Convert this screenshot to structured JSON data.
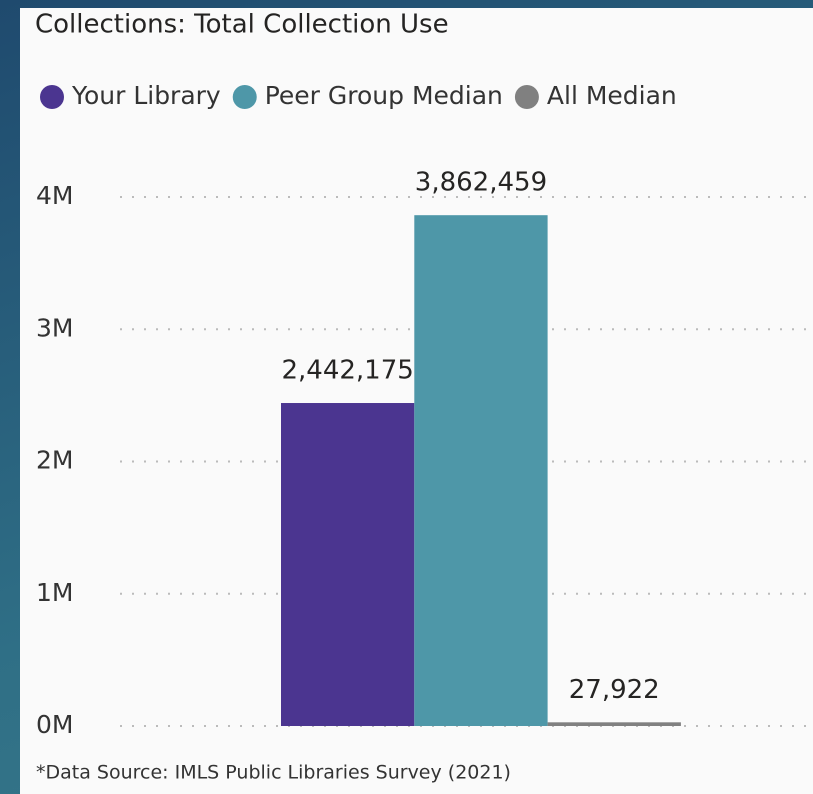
{
  "chart_data": {
    "type": "bar",
    "title": "Collections: Total Collection Use",
    "categories": [
      null
    ],
    "series": [
      {
        "name": "Your Library",
        "color": "#4b3590",
        "values": [
          2442175
        ],
        "value_labels": [
          "2,442,175"
        ]
      },
      {
        "name": "Peer Group Median",
        "color": "#4e97a8",
        "values": [
          3862459
        ],
        "value_labels": [
          "3,862,459"
        ]
      },
      {
        "name": "All Median",
        "color": "#808080",
        "values": [
          27922
        ],
        "value_labels": [
          "27,922"
        ]
      }
    ],
    "ylim": [
      0,
      4000000
    ],
    "yticks": [
      {
        "value": 0,
        "label": "0M"
      },
      {
        "value": 1000000,
        "label": "1M"
      },
      {
        "value": 2000000,
        "label": "2M"
      },
      {
        "value": 3000000,
        "label": "3M"
      },
      {
        "value": 4000000,
        "label": "4M"
      }
    ],
    "grid": true,
    "legend": "top",
    "note": "*Data Source: IMLS Public Libraries Survey (2021)"
  }
}
